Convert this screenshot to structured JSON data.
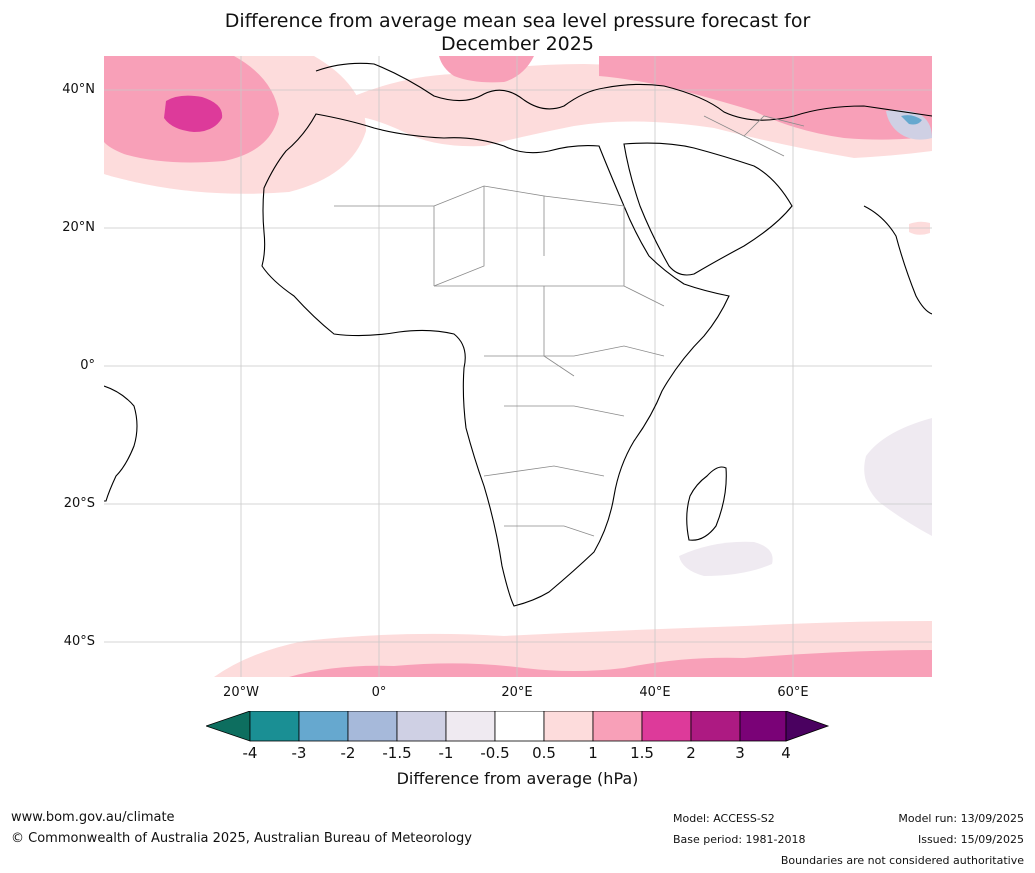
{
  "title_line1": "Difference from average mean sea level pressure forecast for",
  "title_line2": "December 2025",
  "lat_labels": [
    "40°N",
    "20°N",
    "0°",
    "20°S",
    "40°S"
  ],
  "lon_labels": [
    "20°W",
    "0°",
    "20°E",
    "40°E",
    "60°E"
  ],
  "colorbar": {
    "label": "Difference from average (hPa)",
    "ticks": [
      "-4",
      "-3",
      "-2",
      "-1.5",
      "-1",
      "-0.5",
      "0.5",
      "1",
      "1.5",
      "2",
      "3",
      "4"
    ],
    "colors": {
      "under": "#0d6e5f",
      "bins": [
        "#1a8f94",
        "#66a8cf",
        "#a6b9da",
        "#cfd0e4",
        "#efeaf1",
        "#ffffff",
        "#fddcdc",
        "#f8a0b8",
        "#dd3a9a",
        "#ad1a82",
        "#7a0277"
      ],
      "over": "#4a0160"
    }
  },
  "footer": {
    "website": "www.bom.gov.au/climate",
    "copyright": "© Commonwealth of Australia 2025, Australian Bureau of Meteorology",
    "model": "Model: ACCESS-S2",
    "base_period": "Base period: 1981-2018",
    "model_run": "Model run: 13/09/2025",
    "issued": "Issued: 15/09/2025",
    "disclaimer": "Boundaries are not considered authoritative"
  }
}
